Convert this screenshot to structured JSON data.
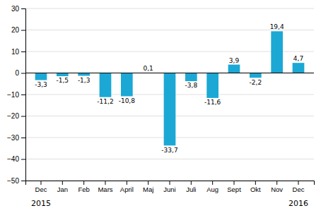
{
  "chart_data": {
    "type": "bar",
    "categories": [
      "Dec",
      "Jan",
      "Feb",
      "Mars",
      "April",
      "Maj",
      "Juni",
      "Juli",
      "Aug",
      "Sept",
      "Okt",
      "Nov",
      "Dec"
    ],
    "values": [
      -3.3,
      -1.5,
      -1.3,
      -11.2,
      -10.8,
      0.1,
      -33.7,
      -3.8,
      -11.6,
      3.9,
      -2.2,
      19.4,
      4.7
    ],
    "value_labels": [
      "-3,3",
      "-1,5",
      "-1,3",
      "-11,2",
      "-10,8",
      "0,1",
      "-33,7",
      "-3,8",
      "-11,6",
      "3,9",
      "-2,2",
      "19,4",
      "4,7"
    ],
    "data_labels": true,
    "color": "#1ba8d5",
    "ylim": [
      -50,
      30
    ],
    "yticks": [
      -50,
      -40,
      -30,
      -20,
      -10,
      0,
      10,
      20,
      30
    ],
    "grid": true,
    "annotations": [
      "2015",
      "2016"
    ]
  }
}
